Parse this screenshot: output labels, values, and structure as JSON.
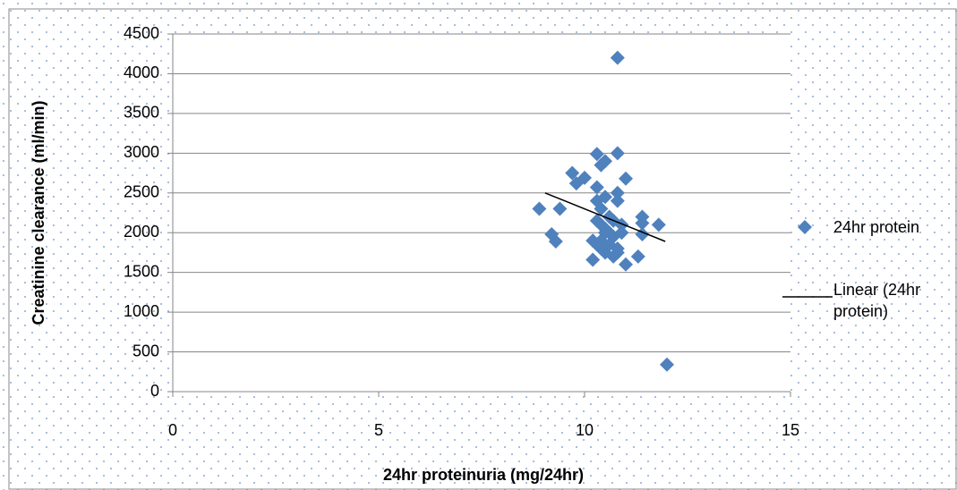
{
  "chart_data": {
    "type": "scatter",
    "xlabel": "24hr proteinuria (mg/24hr)",
    "ylabel": "Creatinine clearance (ml/min)",
    "xlim": [
      0,
      15
    ],
    "xticks": [
      0,
      5,
      10,
      15
    ],
    "ylim": [
      0,
      4500
    ],
    "yticks": [
      0,
      500,
      1000,
      1500,
      2000,
      2500,
      3000,
      3500,
      4000,
      4500
    ],
    "grid": true,
    "legend": "right",
    "series": [
      {
        "name": "24hr protein",
        "color": "#4f81bd",
        "x": [
          10.8,
          10.8,
          10.3,
          10.4,
          10.5,
          9.7,
          9.8,
          10.0,
          11.0,
          10.8,
          10.8,
          10.3,
          10.3,
          10.5,
          8.9,
          9.4,
          9.2,
          9.3,
          11.4,
          11.4,
          11.8,
          11.4,
          11.3,
          11.0,
          10.2,
          12.0,
          10.3,
          10.4,
          10.5,
          10.6,
          10.7,
          10.9,
          10.4,
          10.6,
          10.8,
          10.3,
          10.5,
          10.7,
          10.9,
          10.4,
          10.6,
          10.2,
          10.8,
          10.5,
          10.7,
          10.4
        ],
        "values": [
          4200,
          3000,
          2990,
          2850,
          2900,
          2750,
          2620,
          2690,
          2680,
          2500,
          2400,
          2570,
          2400,
          2450,
          2300,
          2300,
          1980,
          1890,
          2200,
          2120,
          2100,
          1980,
          1700,
          1600,
          1660,
          340,
          2150,
          2100,
          2050,
          2000,
          1950,
          2100,
          1900,
          1850,
          1800,
          1850,
          1750,
          1700,
          2000,
          2300,
          2200,
          1900,
          1750,
          2000,
          2150,
          1800
        ]
      },
      {
        "name": "Linear (24hr protein)",
        "color": "#000000",
        "kind": "trendline",
        "x": [
          9.04,
          11.96
        ],
        "values": [
          2500,
          1890
        ]
      }
    ]
  }
}
